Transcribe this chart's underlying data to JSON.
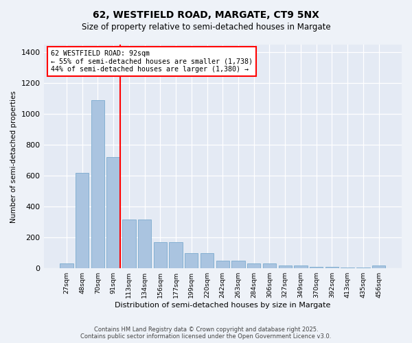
{
  "title_line1": "62, WESTFIELD ROAD, MARGATE, CT9 5NX",
  "title_line2": "Size of property relative to semi-detached houses in Margate",
  "xlabel": "Distribution of semi-detached houses by size in Margate",
  "ylabel": "Number of semi-detached properties",
  "categories": [
    "27sqm",
    "48sqm",
    "70sqm",
    "91sqm",
    "113sqm",
    "134sqm",
    "156sqm",
    "177sqm",
    "199sqm",
    "220sqm",
    "242sqm",
    "263sqm",
    "284sqm",
    "306sqm",
    "327sqm",
    "349sqm",
    "370sqm",
    "392sqm",
    "413sqm",
    "435sqm",
    "456sqm"
  ],
  "values": [
    30,
    620,
    1090,
    720,
    315,
    315,
    170,
    170,
    100,
    100,
    50,
    50,
    30,
    30,
    20,
    20,
    10,
    10,
    5,
    5,
    20
  ],
  "bar_color": "#aac4e0",
  "bar_edge_color": "#7aaace",
  "highlight_bar_index": 3,
  "annotation_title": "62 WESTFIELD ROAD: 92sqm",
  "annotation_line2": "← 55% of semi-detached houses are smaller (1,738)",
  "annotation_line3": "44% of semi-detached houses are larger (1,380) →",
  "ylim": [
    0,
    1450
  ],
  "yticks": [
    0,
    200,
    400,
    600,
    800,
    1000,
    1200,
    1400
  ],
  "footer_line1": "Contains HM Land Registry data © Crown copyright and database right 2025.",
  "footer_line2": "Contains public sector information licensed under the Open Government Licence v3.0.",
  "bg_color": "#eef2f8",
  "plot_bg_color": "#e4eaf4"
}
